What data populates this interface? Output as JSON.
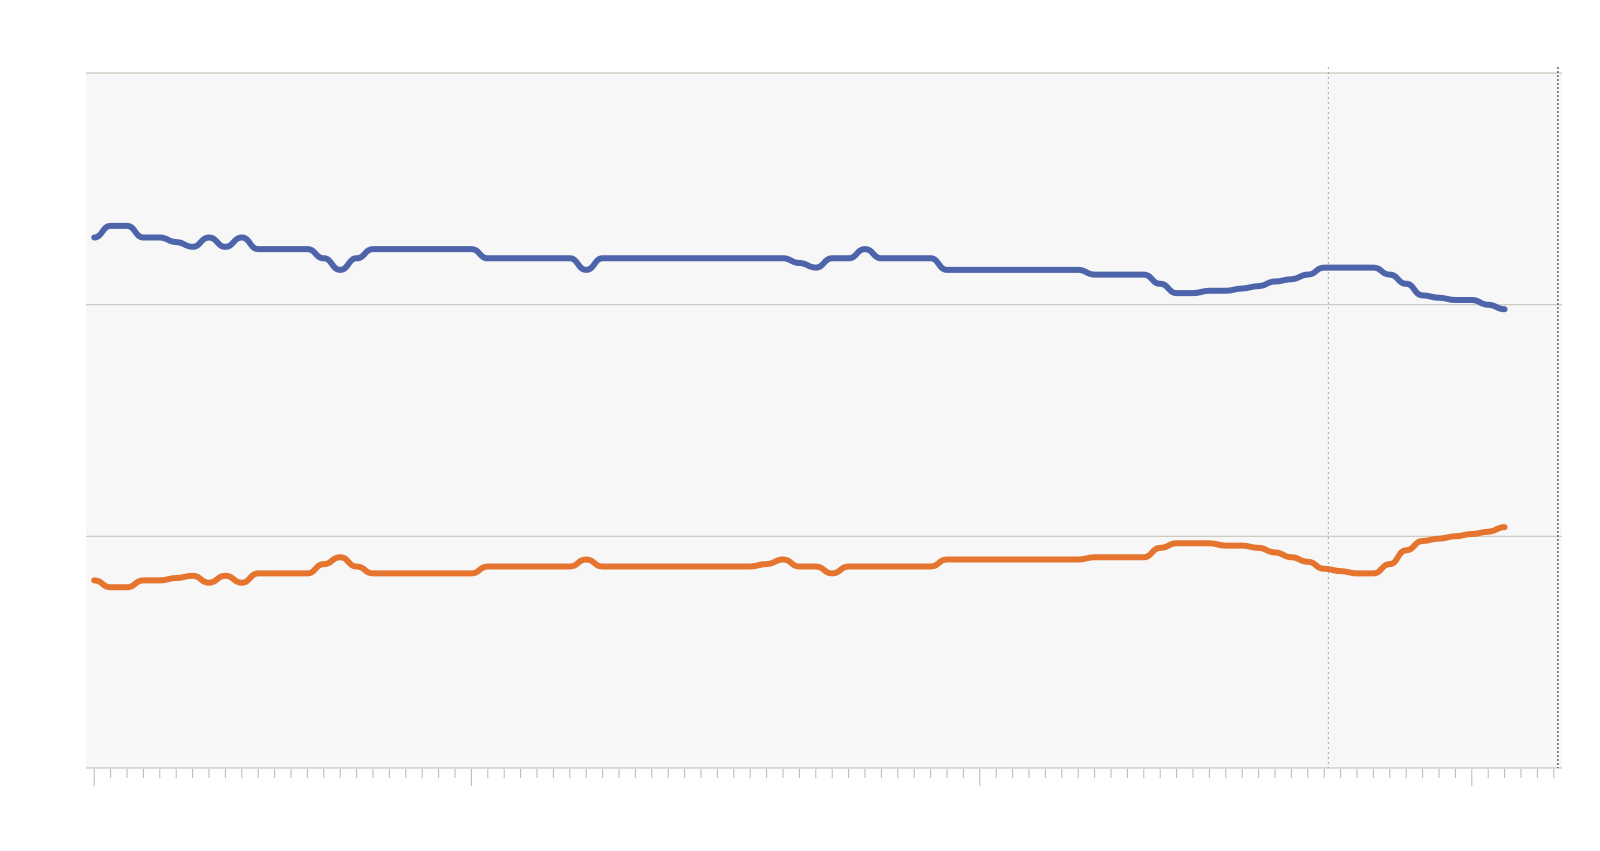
{
  "chart_data": {
    "type": "line",
    "title": "",
    "xlabel": "",
    "ylabel": "",
    "xlim": [
      -1,
      179
    ],
    "ylim": [
      0,
      3
    ],
    "grid": true,
    "colors": {
      "plot_background": "#f6f7f6",
      "gridline": "#c9c6bb",
      "tick": "#bdb9b1",
      "marker_line": "#9c9c9c",
      "series_1": "#4e64aa",
      "series_2": "#e5742f"
    },
    "vertical_markers": [
      {
        "x": 150.5,
        "style": "dotted-light"
      },
      {
        "x": 178.5,
        "style": "dotted-dark"
      }
    ],
    "x_ticks": {
      "start": 0,
      "end": 179,
      "step": 2,
      "major": [
        0,
        46,
        108,
        168
      ]
    },
    "series": [
      {
        "color": "#4e64aa",
        "x": [
          0,
          2,
          4,
          6,
          8,
          10,
          12,
          14,
          16,
          18,
          20,
          22,
          24,
          26,
          28,
          30,
          32,
          34,
          36,
          38,
          40,
          42,
          44,
          46,
          48,
          50,
          52,
          54,
          56,
          58,
          60,
          62,
          64,
          66,
          68,
          70,
          72,
          74,
          76,
          78,
          80,
          82,
          84,
          86,
          88,
          90,
          92,
          94,
          96,
          98,
          100,
          102,
          104,
          106,
          108,
          110,
          112,
          114,
          116,
          118,
          120,
          122,
          124,
          126,
          128,
          130,
          132,
          134,
          136,
          138,
          140,
          142,
          144,
          146,
          148,
          150,
          152,
          154,
          156,
          158,
          160,
          162,
          164,
          166,
          168,
          170,
          172
        ],
        "values": [
          2.29,
          2.34,
          2.34,
          2.29,
          2.29,
          2.27,
          2.25,
          2.29,
          2.25,
          2.29,
          2.24,
          2.24,
          2.24,
          2.24,
          2.2,
          2.15,
          2.2,
          2.24,
          2.24,
          2.24,
          2.24,
          2.24,
          2.24,
          2.24,
          2.2,
          2.2,
          2.2,
          2.2,
          2.2,
          2.2,
          2.15,
          2.2,
          2.2,
          2.2,
          2.2,
          2.2,
          2.2,
          2.2,
          2.2,
          2.2,
          2.2,
          2.2,
          2.2,
          2.18,
          2.16,
          2.2,
          2.2,
          2.24,
          2.2,
          2.2,
          2.2,
          2.2,
          2.15,
          2.15,
          2.15,
          2.15,
          2.15,
          2.15,
          2.15,
          2.15,
          2.15,
          2.13,
          2.13,
          2.13,
          2.13,
          2.09,
          2.05,
          2.05,
          2.06,
          2.06,
          2.07,
          2.08,
          2.1,
          2.11,
          2.13,
          2.16,
          2.16,
          2.16,
          2.16,
          2.13,
          2.09,
          2.04,
          2.03,
          2.02,
          2.02,
          2.0,
          1.98
        ]
      },
      {
        "color": "#e5742f",
        "x": [
          0,
          2,
          4,
          6,
          8,
          10,
          12,
          14,
          16,
          18,
          20,
          22,
          24,
          26,
          28,
          30,
          32,
          34,
          36,
          38,
          40,
          42,
          44,
          46,
          48,
          50,
          52,
          54,
          56,
          58,
          60,
          62,
          64,
          66,
          68,
          70,
          72,
          74,
          76,
          78,
          80,
          82,
          84,
          86,
          88,
          90,
          92,
          94,
          96,
          98,
          100,
          102,
          104,
          106,
          108,
          110,
          112,
          114,
          116,
          118,
          120,
          122,
          124,
          126,
          128,
          130,
          132,
          134,
          136,
          138,
          140,
          142,
          144,
          146,
          148,
          150,
          152,
          154,
          156,
          158,
          160,
          162,
          164,
          166,
          168,
          170,
          172
        ],
        "values": [
          0.81,
          0.78,
          0.78,
          0.81,
          0.81,
          0.82,
          0.83,
          0.8,
          0.83,
          0.8,
          0.84,
          0.84,
          0.84,
          0.84,
          0.88,
          0.91,
          0.87,
          0.84,
          0.84,
          0.84,
          0.84,
          0.84,
          0.84,
          0.84,
          0.87,
          0.87,
          0.87,
          0.87,
          0.87,
          0.87,
          0.9,
          0.87,
          0.87,
          0.87,
          0.87,
          0.87,
          0.87,
          0.87,
          0.87,
          0.87,
          0.87,
          0.88,
          0.9,
          0.87,
          0.87,
          0.84,
          0.87,
          0.87,
          0.87,
          0.87,
          0.87,
          0.87,
          0.9,
          0.9,
          0.9,
          0.9,
          0.9,
          0.9,
          0.9,
          0.9,
          0.9,
          0.91,
          0.91,
          0.91,
          0.91,
          0.95,
          0.97,
          0.97,
          0.97,
          0.96,
          0.96,
          0.95,
          0.93,
          0.91,
          0.89,
          0.86,
          0.85,
          0.84,
          0.84,
          0.88,
          0.94,
          0.98,
          0.99,
          1.0,
          1.01,
          1.02,
          1.04
        ]
      }
    ]
  }
}
